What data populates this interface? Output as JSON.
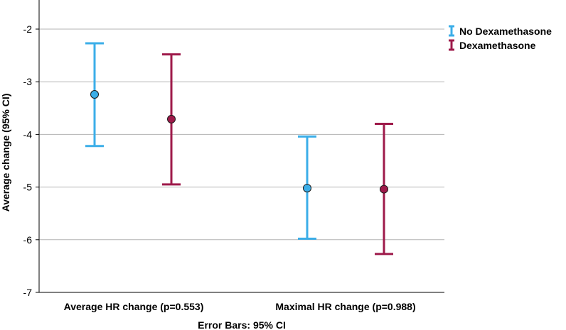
{
  "chart_data": {
    "type": "errorbar",
    "title": "",
    "ylabel": "Average change (95% CI)",
    "xlabel": "",
    "footnote": "Error Bars: 95% CI",
    "ylim": [
      -7,
      -1.6
    ],
    "yticks": [
      -7,
      -6,
      -5,
      -4,
      -3,
      -2
    ],
    "ytick_labels": [
      "-7",
      "-6",
      "-5",
      "-4",
      "-3",
      "-2"
    ],
    "grid": true,
    "legend_position": "top-right",
    "categories": [
      "Average HR change (p=0.553)",
      "Maximal HR change (p=0.988)"
    ],
    "series": [
      {
        "name": "No Dexamethasone",
        "color": "#3BAEE8",
        "means": [
          -3.24,
          -5.02
        ],
        "lower": [
          -4.22,
          -5.98
        ],
        "upper": [
          -2.27,
          -4.04
        ]
      },
      {
        "name": "Dexamethasone",
        "color": "#9E1A4A",
        "means": [
          -3.71,
          -5.04
        ],
        "lower": [
          -4.95,
          -6.27
        ],
        "upper": [
          -2.48,
          -3.8
        ]
      }
    ]
  }
}
